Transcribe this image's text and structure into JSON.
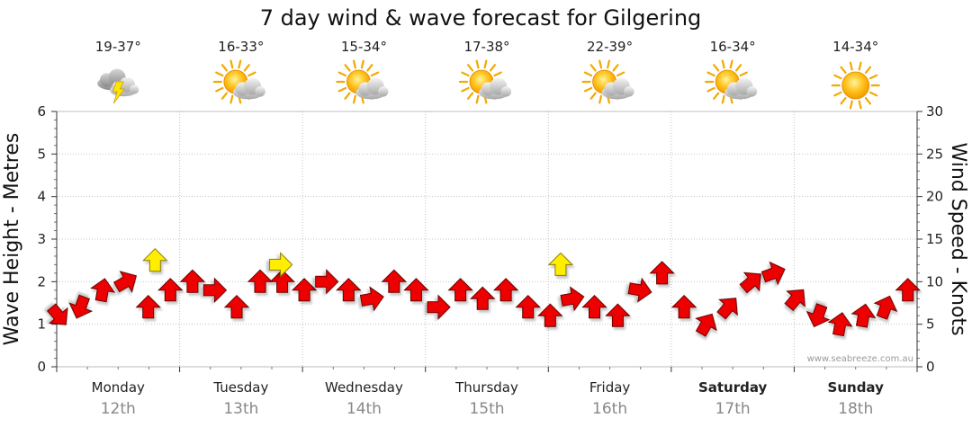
{
  "chart_data": {
    "type": "line",
    "title": "7 day wind & wave forecast for Gilgering",
    "ylabel_left": "Wave Height - Metres",
    "ylabel_right": "Wind Speed - Knots",
    "ylim_left": [
      0,
      6
    ],
    "ylim_right": [
      0,
      30
    ],
    "yticks_left": [
      "0",
      "1",
      "2",
      "3",
      "4",
      "5",
      "6"
    ],
    "yticks_right": [
      "0",
      "5",
      "10",
      "15",
      "20",
      "25",
      "30"
    ],
    "grid": true,
    "credit": "www.seabreeze.com.au",
    "days": [
      {
        "name": "Monday",
        "date": "12th",
        "bold": false,
        "temp": "19-37°",
        "icon": "thunderstorm-icon"
      },
      {
        "name": "Tuesday",
        "date": "13th",
        "bold": false,
        "temp": "16-33°",
        "icon": "partly-cloudy-icon"
      },
      {
        "name": "Wednesday",
        "date": "14th",
        "bold": false,
        "temp": "15-34°",
        "icon": "partly-cloudy-icon"
      },
      {
        "name": "Thursday",
        "date": "15th",
        "bold": false,
        "temp": "17-38°",
        "icon": "partly-cloudy-icon"
      },
      {
        "name": "Friday",
        "date": "16th",
        "bold": false,
        "temp": "22-39°",
        "icon": "partly-cloudy-icon"
      },
      {
        "name": "Saturday",
        "date": "17th",
        "bold": true,
        "temp": "16-34°",
        "icon": "partly-cloudy-icon"
      },
      {
        "name": "Sunday",
        "date": "18th",
        "bold": true,
        "temp": "14-34°",
        "icon": "sunny-icon"
      }
    ],
    "series": [
      {
        "name": "wind",
        "color": "#ee0000",
        "x": [
          0.0,
          0.18,
          0.36,
          0.55,
          0.73,
          0.91,
          1.09,
          1.27,
          1.45,
          1.64,
          1.82,
          2.0,
          2.18,
          2.36,
          2.55,
          2.73,
          2.91,
          3.09,
          3.27,
          3.45,
          3.64,
          3.82,
          4.0,
          4.18,
          4.36,
          4.55,
          4.73,
          4.91,
          5.09,
          5.27,
          5.45,
          5.64,
          5.82,
          6.0,
          6.18,
          6.36,
          6.55,
          6.73,
          6.91
        ],
        "speed_kn": [
          6,
          7,
          9,
          10,
          7,
          9,
          10,
          9,
          7,
          10,
          10,
          9,
          10,
          9,
          8,
          10,
          9,
          7,
          9,
          8,
          9,
          7,
          6,
          8,
          7,
          6,
          9,
          11,
          7,
          5,
          7,
          10,
          11,
          8,
          6,
          5,
          6,
          7,
          9
        ],
        "direction_deg": [
          140,
          200,
          10,
          60,
          0,
          0,
          0,
          90,
          0,
          0,
          0,
          0,
          90,
          0,
          80,
          0,
          0,
          90,
          0,
          0,
          0,
          0,
          0,
          80,
          0,
          0,
          100,
          0,
          0,
          30,
          40,
          50,
          70,
          40,
          200,
          10,
          10,
          20,
          0
        ]
      },
      {
        "name": "wave",
        "color": "#ffee00",
        "x": [
          0.8,
          1.82,
          4.1
        ],
        "height_m": [
          2.5,
          2.4,
          2.4
        ],
        "direction_deg": [
          0,
          90,
          0
        ]
      }
    ]
  }
}
